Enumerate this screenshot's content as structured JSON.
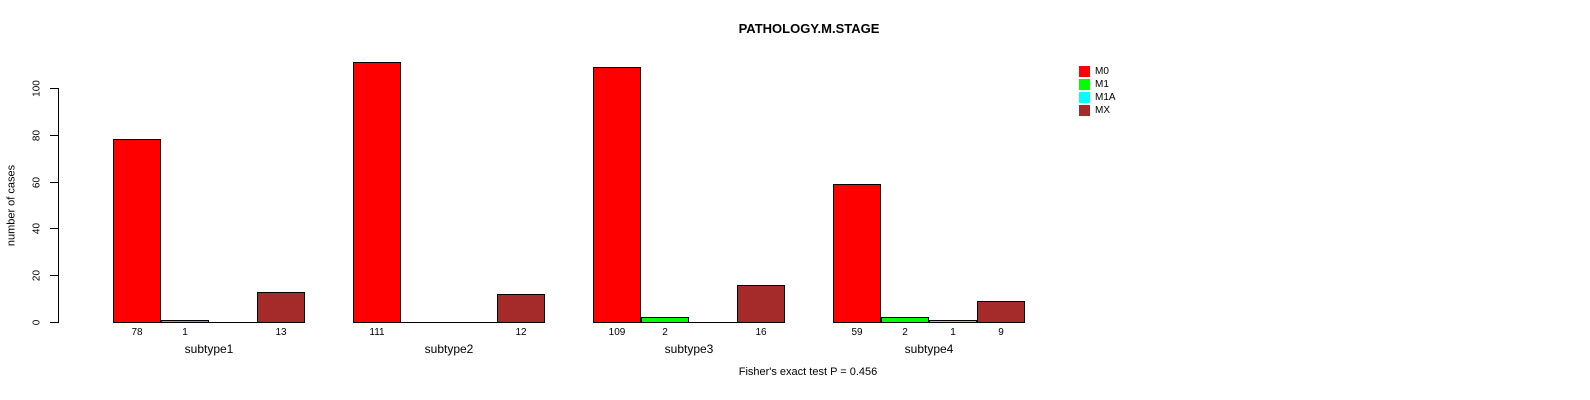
{
  "chart_data": {
    "type": "bar",
    "title": "PATHOLOGY.M.STAGE",
    "ylabel": "number of cases",
    "xlabel": "",
    "categories": [
      "subtype1",
      "subtype2",
      "subtype3",
      "subtype4"
    ],
    "series": [
      {
        "name": "M0",
        "color": "#FF0000",
        "values": [
          78,
          111,
          109,
          59
        ]
      },
      {
        "name": "M1",
        "color": "#00FF00",
        "values": [
          1,
          0,
          2,
          2
        ]
      },
      {
        "name": "M1A",
        "color": "#00FFFF",
        "values": [
          0,
          0,
          0,
          1
        ]
      },
      {
        "name": "MX",
        "color": "#A52A2A",
        "values": [
          13,
          12,
          16,
          9
        ]
      }
    ],
    "yticks": [
      0,
      20,
      40,
      60,
      80,
      100
    ],
    "ylim": [
      0,
      113
    ],
    "grid": false,
    "legend_position": "top-right",
    "bar_value_labels_shown": true,
    "zero_value_bars_drawn_as_line_without_label": true,
    "annotation": "Fisher's exact test P = 0.456"
  }
}
